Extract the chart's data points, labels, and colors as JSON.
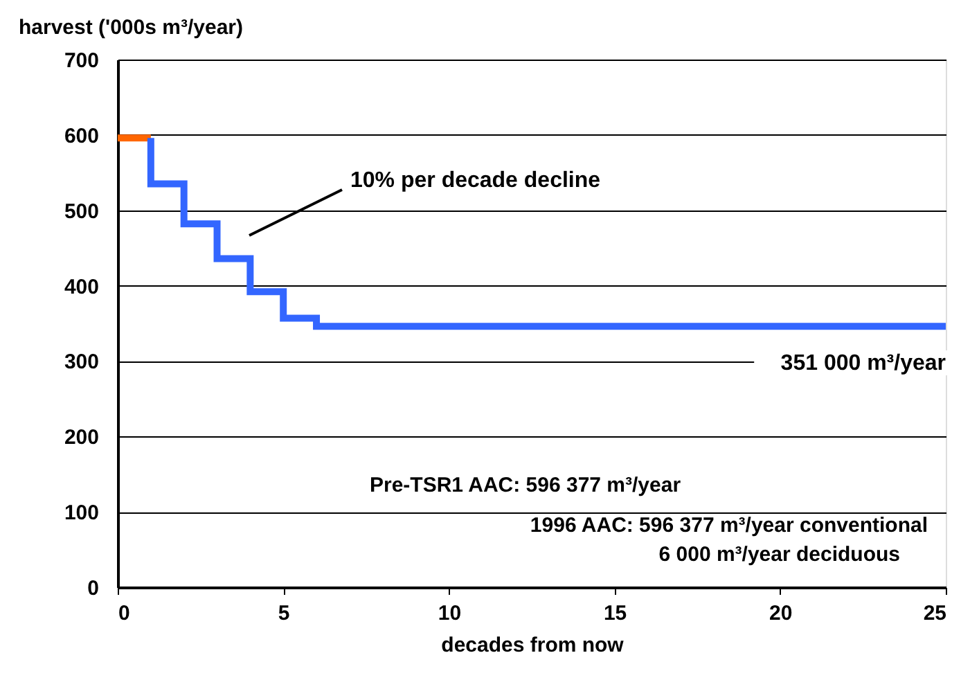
{
  "chart_data": {
    "type": "line",
    "xlabel": "decades from now",
    "ylabel": "harvest ('000s m³/year)",
    "xlim": [
      0,
      25
    ],
    "xticks": [
      0,
      5,
      10,
      15,
      20,
      25
    ],
    "ylim": [
      0,
      700
    ],
    "yticks": [
      0,
      100,
      200,
      300,
      400,
      500,
      600,
      700
    ],
    "grid": "y",
    "series": [
      {
        "type": "line",
        "color": "#ff6600",
        "x": [
          0,
          1
        ],
        "values": [
          596,
          596
        ]
      },
      {
        "type": "step",
        "color": "#3366ff",
        "x": [
          1,
          2,
          3,
          4,
          5,
          6,
          25
        ],
        "values": [
          596,
          535,
          482,
          436,
          392,
          357,
          346
        ]
      }
    ],
    "annotations": [
      "10% per decade decline",
      "351 000 m³/year",
      "Pre-TSR1 AAC: 596 377 m³/year",
      "1996 AAC: 596 377 m³/year  conventional",
      "6 000 m³/year  deciduous"
    ]
  }
}
